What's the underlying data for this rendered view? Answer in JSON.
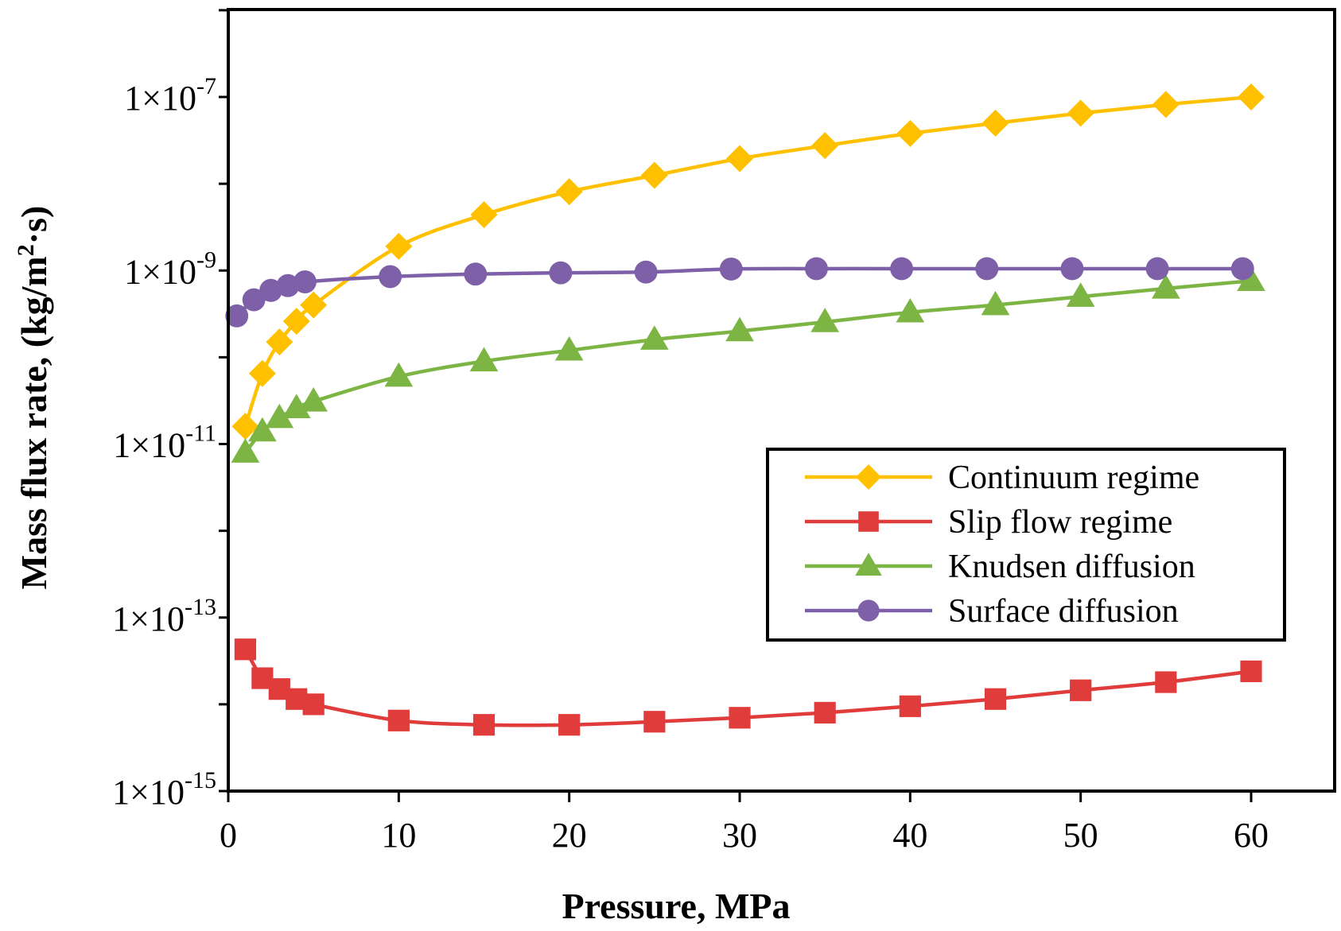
{
  "chart_data": {
    "type": "line",
    "title": "",
    "xlabel": "Pressure,   MPa",
    "ylabel": "Mass flux rate, (kg/m",
    "ylabel_sup": "2",
    "ylabel_tail": "·s)",
    "xlim": [
      0,
      65
    ],
    "ylim": [
      1e-15,
      1e-06
    ],
    "yscale": "log",
    "x_ticks": [
      0,
      10,
      20,
      30,
      40,
      50,
      60
    ],
    "y_ticks": [
      {
        "value": 1e-15,
        "mantissa": "1",
        "times": "×",
        "base": "10",
        "exponent": "-15"
      },
      {
        "value": 1e-13,
        "mantissa": "1",
        "times": "×",
        "base": "10",
        "exponent": "-13"
      },
      {
        "value": 1e-11,
        "mantissa": "1",
        "times": "×",
        "base": "10",
        "exponent": "-11"
      },
      {
        "value": 1e-09,
        "mantissa": "1",
        "times": "×",
        "base": "10",
        "exponent": "-9"
      },
      {
        "value": 1e-07,
        "mantissa": "1",
        "times": "×",
        "base": "10",
        "exponent": "-7"
      }
    ],
    "grid": false,
    "legend_position": "lower-right",
    "series": [
      {
        "name": "Continuum regime",
        "color": "#FFC000",
        "marker": "diamond",
        "x": [
          1,
          2,
          3,
          4,
          5,
          10,
          15,
          20,
          25,
          30,
          35,
          40,
          45,
          50,
          55,
          60
        ],
        "y": [
          1.6e-11,
          6.5e-11,
          1.5e-10,
          2.6e-10,
          4e-10,
          1.9e-09,
          4.4e-09,
          8.1e-09,
          1.25e-08,
          1.95e-08,
          2.75e-08,
          3.8e-08,
          5e-08,
          6.5e-08,
          8.2e-08,
          1e-07
        ]
      },
      {
        "name": "Slip flow regime",
        "color": "#E03C3C",
        "marker": "square",
        "x": [
          1,
          2,
          3,
          4,
          5,
          10,
          15,
          20,
          25,
          30,
          35,
          40,
          45,
          50,
          55,
          60
        ],
        "y": [
          4.3e-14,
          2e-14,
          1.5e-14,
          1.15e-14,
          1e-14,
          6.5e-15,
          5.8e-15,
          5.8e-15,
          6.3e-15,
          7e-15,
          8e-15,
          9.5e-15,
          1.15e-14,
          1.45e-14,
          1.8e-14,
          2.4e-14
        ]
      },
      {
        "name": "Knudsen diffusion",
        "color": "#7DB544",
        "marker": "triangle",
        "x": [
          1,
          2,
          3,
          4,
          5,
          10,
          15,
          20,
          25,
          30,
          35,
          40,
          45,
          50,
          55,
          60
        ],
        "y": [
          8e-12,
          1.4e-11,
          2e-11,
          2.6e-11,
          3.1e-11,
          6e-11,
          9e-11,
          1.2e-10,
          1.6e-10,
          2e-10,
          2.55e-10,
          3.3e-10,
          4e-10,
          5e-10,
          6.2e-10,
          7.6e-10
        ]
      },
      {
        "name": "Surface diffusion",
        "color": "#7E60A8",
        "marker": "circle",
        "x": [
          0.5,
          1.5,
          2.5,
          3.5,
          4.5,
          9.5,
          14.5,
          19.5,
          24.5,
          29.5,
          34.5,
          39.5,
          44.5,
          49.5,
          54.5,
          59.5
        ],
        "y": [
          3e-10,
          4.6e-10,
          5.9e-10,
          6.7e-10,
          7.4e-10,
          8.5e-10,
          9.1e-10,
          9.4e-10,
          9.6e-10,
          1.04e-09,
          1.05e-09,
          1.05e-09,
          1.05e-09,
          1.05e-09,
          1.05e-09,
          1.05e-09
        ]
      }
    ]
  }
}
